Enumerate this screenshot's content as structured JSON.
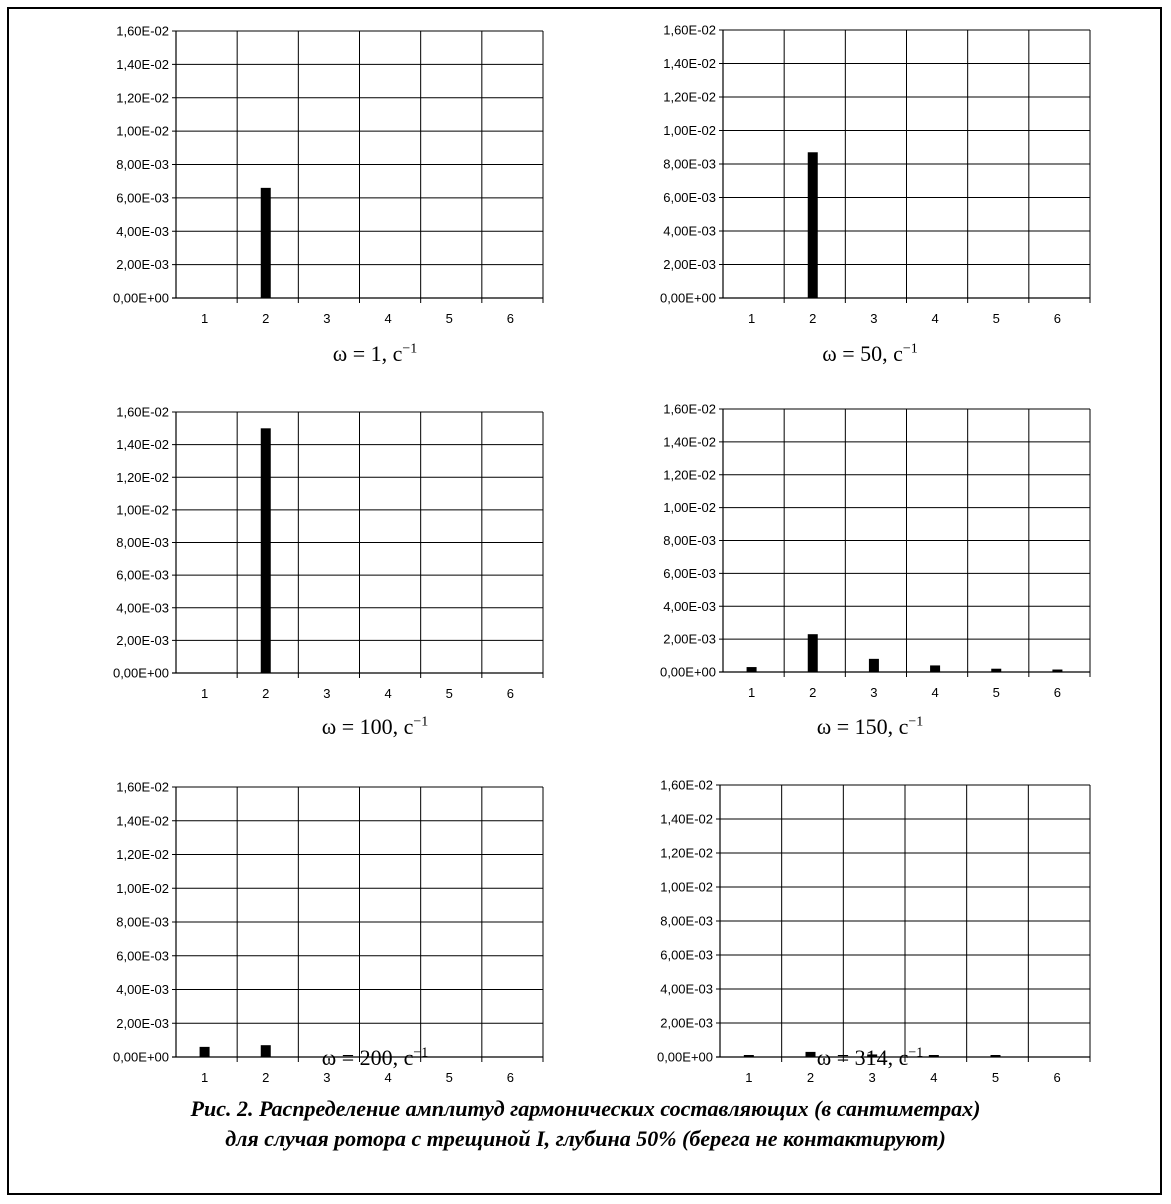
{
  "caption": {
    "line1": "Рис. 2. Распределение амплитуд гармонических составляющих (в сантиметрах)",
    "line2": "для случая ротора с трещиной I, глубина 50% (берега не контактируют)"
  },
  "chart_data": [
    {
      "type": "bar",
      "categories": [
        "1",
        "2",
        "3",
        "4",
        "5",
        "6"
      ],
      "values": [
        0,
        0.0066,
        0,
        0,
        0,
        0
      ],
      "ylim": [
        0,
        0.016
      ],
      "yticks": [
        "0,00E+00",
        "2,00E-03",
        "4,00E-03",
        "6,00E-03",
        "8,00E-03",
        "1,00E-02",
        "1,20E-02",
        "1,40E-02",
        "1,60E-02"
      ],
      "omega_label": "ω = 1, с",
      "omega_sup": "−1",
      "grid": true
    },
    {
      "type": "bar",
      "categories": [
        "1",
        "2",
        "3",
        "4",
        "5",
        "6"
      ],
      "values": [
        0,
        0.0087,
        0,
        0,
        0,
        0
      ],
      "ylim": [
        0,
        0.016
      ],
      "yticks": [
        "0,00E+00",
        "2,00E-03",
        "4,00E-03",
        "6,00E-03",
        "8,00E-03",
        "1,00E-02",
        "1,20E-02",
        "1,40E-02",
        "1,60E-02"
      ],
      "omega_label": "ω = 50, с",
      "omega_sup": "−1",
      "grid": true
    },
    {
      "type": "bar",
      "categories": [
        "1",
        "2",
        "3",
        "4",
        "5",
        "6"
      ],
      "values": [
        0,
        0.015,
        0,
        0,
        0,
        0
      ],
      "ylim": [
        0,
        0.016
      ],
      "yticks": [
        "0,00E+00",
        "2,00E-03",
        "4,00E-03",
        "6,00E-03",
        "8,00E-03",
        "1,00E-02",
        "1,20E-02",
        "1,40E-02",
        "1,60E-02"
      ],
      "omega_label": "ω = 100, с",
      "omega_sup": "−1",
      "grid": true
    },
    {
      "type": "bar",
      "categories": [
        "1",
        "2",
        "3",
        "4",
        "5",
        "6"
      ],
      "values": [
        0.0003,
        0.0023,
        0.0008,
        0.0004,
        0.0002,
        0.00015
      ],
      "ylim": [
        0,
        0.016
      ],
      "yticks": [
        "0,00E+00",
        "2,00E-03",
        "4,00E-03",
        "6,00E-03",
        "8,00E-03",
        "1,00E-02",
        "1,20E-02",
        "1,40E-02",
        "1,60E-02"
      ],
      "omega_label": "ω = 150, с",
      "omega_sup": "−1",
      "grid": true
    },
    {
      "type": "bar",
      "categories": [
        "1",
        "2",
        "3",
        "4",
        "5",
        "6"
      ],
      "values": [
        0.0006,
        0.0007,
        0,
        0,
        0,
        0
      ],
      "ylim": [
        0,
        0.016
      ],
      "yticks": [
        "0,00E+00",
        "2,00E-03",
        "4,00E-03",
        "6,00E-03",
        "8,00E-03",
        "1,00E-02",
        "1,20E-02",
        "1,40E-02",
        "1,60E-02"
      ],
      "omega_label": "ω = 200, с",
      "omega_sup": "−1",
      "grid": true
    },
    {
      "type": "bar",
      "categories": [
        "1",
        "2",
        "3",
        "4",
        "5",
        "6"
      ],
      "values": [
        5e-05,
        0.0003,
        0.00015,
        5e-05,
        5e-05,
        0
      ],
      "ylim": [
        0,
        0.016
      ],
      "yticks": [
        "0,00E+00",
        "2,00E-03",
        "4,00E-03",
        "6,00E-03",
        "8,00E-03",
        "1,00E-02",
        "1,20E-02",
        "1,40E-02",
        "1,60E-02"
      ],
      "omega_label": "ω = 314, с",
      "omega_sup": "−1",
      "grid": true
    }
  ]
}
